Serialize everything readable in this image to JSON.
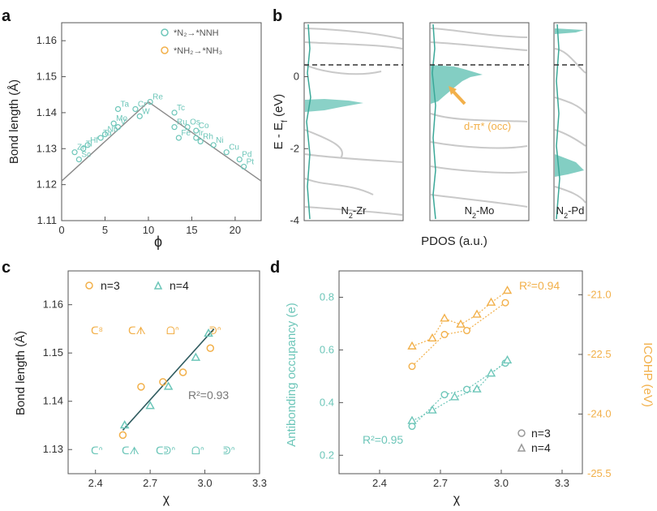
{
  "colors": {
    "teal": "#6dc6b9",
    "teal_dark": "#3aa898",
    "orange": "#f2b04a",
    "dark_teal_line": "#2f5b5f",
    "gray": "#b9b9b9",
    "frame": "#555555"
  },
  "chart_data": [
    {
      "id": "a",
      "type": "scatter",
      "panel_label": "a",
      "xlabel": "ϕ",
      "ylabel": "Bond length (Å)",
      "xlim": [
        0,
        23
      ],
      "ylim": [
        1.11,
        1.165
      ],
      "xticks": [
        0,
        5,
        10,
        15,
        20
      ],
      "yticks": [
        1.11,
        1.12,
        1.13,
        1.14,
        1.15,
        1.16
      ],
      "ytick_labels": [
        "1.11",
        "1.12",
        "1.13",
        "1.14",
        "1.15",
        "1.16"
      ],
      "legend": [
        {
          "label": "*N₂→*NNH",
          "color": "teal"
        },
        {
          "label": "*NH₂→*NH₃",
          "color": "orange"
        }
      ],
      "fit_lines": [
        {
          "x": [
            0,
            10
          ],
          "y": [
            1.121,
            1.143
          ]
        },
        {
          "x": [
            10,
            23
          ],
          "y": [
            1.143,
            1.121
          ]
        }
      ],
      "points": [
        {
          "label": "Sc",
          "x": 2.0,
          "y": 1.127
        },
        {
          "label": "Zr",
          "x": 1.5,
          "y": 1.129
        },
        {
          "label": "Ti",
          "x": 2.5,
          "y": 1.13
        },
        {
          "label": "Hf",
          "x": 3.0,
          "y": 1.131
        },
        {
          "label": "Nb",
          "x": 5.0,
          "y": 1.134
        },
        {
          "label": "Ta",
          "x": 4.5,
          "y": 1.133
        },
        {
          "label": "V",
          "x": 6.5,
          "y": 1.136
        },
        {
          "label": "Mo",
          "x": 6.0,
          "y": 1.137
        },
        {
          "label": "Ta",
          "x": 6.5,
          "y": 1.141
        },
        {
          "label": "Cr",
          "x": 8.5,
          "y": 1.141
        },
        {
          "label": "W",
          "x": 9.0,
          "y": 1.139
        },
        {
          "label": "Re",
          "x": 10.2,
          "y": 1.143
        },
        {
          "label": "Tc",
          "x": 13.0,
          "y": 1.14
        },
        {
          "label": "Ru",
          "x": 13.0,
          "y": 1.136
        },
        {
          "label": "Os",
          "x": 14.5,
          "y": 1.136
        },
        {
          "label": "Co",
          "x": 15.5,
          "y": 1.135
        },
        {
          "label": "Fe",
          "x": 13.5,
          "y": 1.133
        },
        {
          "label": "Rh",
          "x": 16.0,
          "y": 1.132
        },
        {
          "label": "Ir",
          "x": 15.5,
          "y": 1.133
        },
        {
          "label": "Ni",
          "x": 17.5,
          "y": 1.131
        },
        {
          "label": "Pd",
          "x": 20.5,
          "y": 1.127
        },
        {
          "label": "Pt",
          "x": 21.0,
          "y": 1.125
        },
        {
          "label": "Cu",
          "x": 19.0,
          "y": 1.129
        }
      ]
    },
    {
      "id": "b",
      "type": "area",
      "panel_label": "b",
      "xlabel": "PDOS (a.u.)",
      "ylabel": "E - E",
      "ylabel_sub": "f",
      "ylabel_unit": " (eV)",
      "ylim": [
        -4,
        1.5
      ],
      "yticks": [
        0,
        -2,
        -4
      ],
      "ytick_labels": [
        "0",
        "-2",
        "-4"
      ],
      "annotation": "d-π* (occ)",
      "subpanels": [
        {
          "label_pre": "N",
          "label_sub": "2",
          "label_post": "-Zr"
        },
        {
          "label_pre": "N",
          "label_sub": "2",
          "label_post": "-Mo"
        },
        {
          "label_pre": "N",
          "label_sub": "2",
          "label_post": "-Pd"
        }
      ]
    },
    {
      "id": "c",
      "type": "scatter",
      "panel_label": "c",
      "xlabel": "χ",
      "ylabel": "Bond length (Å)",
      "xlim": [
        2.25,
        3.3
      ],
      "ylim": [
        1.125,
        1.167
      ],
      "xticks": [
        2.4,
        2.7,
        3.0,
        3.3
      ],
      "xtick_labels": [
        "2.4",
        "2.7",
        "3.0",
        "3.3"
      ],
      "yticks": [
        1.13,
        1.14,
        1.15,
        1.16
      ],
      "ytick_labels": [
        "1.13",
        "1.14",
        "1.15",
        "1.16"
      ],
      "legend": [
        {
          "label": "n=3",
          "color": "orange"
        },
        {
          "label": "n=4",
          "color": "teal"
        }
      ],
      "fit_line": {
        "x": [
          2.55,
          3.05
        ],
        "y": [
          1.134,
          1.155
        ]
      },
      "r2": "R²=0.93",
      "series": [
        {
          "name": "n=3",
          "x": [
            2.55,
            2.65,
            2.77,
            2.88,
            3.03
          ],
          "y": [
            1.133,
            1.143,
            1.144,
            1.146,
            1.151
          ]
        },
        {
          "name": "n=4",
          "x": [
            2.56,
            2.7,
            2.8,
            2.95,
            3.02
          ],
          "y": [
            1.135,
            1.139,
            1.143,
            1.149,
            1.154
          ]
        }
      ]
    },
    {
      "id": "d",
      "type": "line",
      "panel_label": "d",
      "xlabel": "χ",
      "ylabel": "Antibonding occupancy (e)",
      "y2label": "ICOHP (eV)",
      "xlim": [
        2.2,
        3.4
      ],
      "ylim": [
        0.13,
        0.9
      ],
      "y2lim": [
        -25.5,
        -20.4
      ],
      "xticks": [
        2.4,
        2.7,
        3.0,
        3.3
      ],
      "xtick_labels": [
        "2.4",
        "2.7",
        "3.0",
        "3.3"
      ],
      "yticks": [
        0.2,
        0.4,
        0.6,
        0.8
      ],
      "ytick_labels": [
        "0.2",
        "0.4",
        "0.6",
        "0.8"
      ],
      "y2ticks": [
        -21.0,
        -22.5,
        -24.0,
        -25.5
      ],
      "y2tick_labels": [
        "-21.0",
        "-22.5",
        "-24.0",
        "-25.5"
      ],
      "r2_left": "R²=0.95",
      "r2_right": "R²=0.94",
      "legend": [
        {
          "label": "n=3",
          "marker": "circle"
        },
        {
          "label": "n=4",
          "marker": "triangle"
        }
      ],
      "series": [
        {
          "name": "antibonding n=3",
          "axis": "left",
          "color": "teal",
          "x": [
            2.56,
            2.72,
            2.83,
            3.02
          ],
          "y": [
            0.31,
            0.43,
            0.45,
            0.55
          ]
        },
        {
          "name": "antibonding n=4",
          "axis": "left",
          "color": "teal",
          "x": [
            2.56,
            2.66,
            2.77,
            2.88,
            2.95,
            3.03
          ],
          "y": [
            0.33,
            0.37,
            0.42,
            0.45,
            0.51,
            0.56
          ]
        },
        {
          "name": "ICOHP n=3",
          "axis": "right",
          "color": "orange",
          "x": [
            2.56,
            2.72,
            2.83,
            3.02
          ],
          "y": [
            -22.8,
            -22.0,
            -21.9,
            -21.2
          ]
        },
        {
          "name": "ICOHP n=4",
          "axis": "right",
          "color": "orange",
          "x": [
            2.56,
            2.66,
            2.72,
            2.8,
            2.88,
            2.95,
            3.03
          ],
          "y": [
            -22.3,
            -22.1,
            -21.6,
            -21.75,
            -21.5,
            -21.2,
            -20.9
          ]
        }
      ]
    }
  ]
}
